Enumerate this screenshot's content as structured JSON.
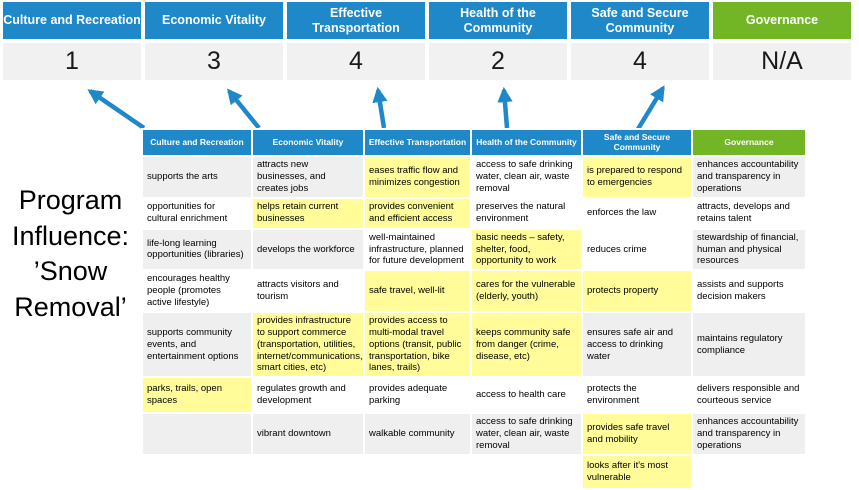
{
  "program_title": "Program Influence: ’Snow Removal’",
  "colors": {
    "priority_blue": "#1e88c9",
    "governance_green": "#72b626",
    "score_box_gray": "#f1f1f1",
    "cell_gray": "#efefef",
    "highlight_yellow": "#fffc99",
    "arrow_blue": "#1e88c9"
  },
  "priorities": [
    {
      "label": "Culture and Recreation",
      "score": "1",
      "theme": "blue"
    },
    {
      "label": "Economic Vitality",
      "score": "3",
      "theme": "blue"
    },
    {
      "label": "Effective Transportation",
      "score": "4",
      "theme": "blue"
    },
    {
      "label": "Health of the Community",
      "score": "2",
      "theme": "blue"
    },
    {
      "label": "Safe and Secure Community",
      "score": "4",
      "theme": "blue"
    },
    {
      "label": "Governance",
      "score": "N/A",
      "theme": "green"
    }
  ],
  "matrix": {
    "columns": [
      {
        "label": "Culture and Recreation",
        "theme": "blue"
      },
      {
        "label": "Economic Vitality",
        "theme": "blue"
      },
      {
        "label": "Effective Transportation",
        "theme": "blue"
      },
      {
        "label": "Health of the Community",
        "theme": "blue"
      },
      {
        "label": "Safe and Secure Community",
        "theme": "blue",
        "wrap": true
      },
      {
        "label": "Governance",
        "theme": "green"
      }
    ],
    "rows": [
      [
        {
          "text": "supports the arts",
          "bg": "gray"
        },
        {
          "text": "attracts new businesses, and creates jobs",
          "bg": "gray"
        },
        {
          "text": "eases traffic flow and minimizes congestion",
          "bg": "yellow"
        },
        {
          "text": "access to safe drinking water, clean air, waste removal",
          "bg": "white"
        },
        {
          "text": "is prepared to respond to emergencies",
          "bg": "yellow"
        },
        {
          "text": "enhances accountability and transparency in operations",
          "bg": "gray"
        }
      ],
      [
        {
          "text": "opportunities for cultural enrichment",
          "bg": "white"
        },
        {
          "text": "helps retain current businesses",
          "bg": "yellow"
        },
        {
          "text": "provides convenient and efficient access",
          "bg": "yellow"
        },
        {
          "text": "preserves the natural environment",
          "bg": "white"
        },
        {
          "text": "enforces the law",
          "bg": "white"
        },
        {
          "text": "attracts, develops and retains talent",
          "bg": "white"
        }
      ],
      [
        {
          "text": "life-long learning opportunities (libraries)",
          "bg": "gray"
        },
        {
          "text": "develops the workforce",
          "bg": "gray"
        },
        {
          "text": "well-maintained infrastructure, planned for future development",
          "bg": "white"
        },
        {
          "text": "basic needs – safety, shelter, food, opportunity to work",
          "bg": "yellow"
        },
        {
          "text": "reduces crime",
          "bg": "white"
        },
        {
          "text": "stewardship of financial, human and physical resources",
          "bg": "gray"
        }
      ],
      [
        {
          "text": "encourages healthy people (promotes active lifestyle)",
          "bg": "white"
        },
        {
          "text": "attracts visitors and tourism",
          "bg": "white"
        },
        {
          "text": "safe travel, well-lit",
          "bg": "yellow"
        },
        {
          "text": "cares for the vulnerable (elderly, youth)",
          "bg": "yellow"
        },
        {
          "text": "protects property",
          "bg": "yellow"
        },
        {
          "text": "assists and supports decision makers",
          "bg": "white"
        }
      ],
      [
        {
          "text": "supports community events, and entertainment options",
          "bg": "gray"
        },
        {
          "text": "provides infrastructure to support commerce (transportation, utilities, internet/communications, smart cities, etc)",
          "bg": "yellow"
        },
        {
          "text": "provides access to multi-modal travel options (transit, public transportation, bike lanes, trails)",
          "bg": "yellow"
        },
        {
          "text": "keeps community safe from danger (crime, disease, etc)",
          "bg": "yellow"
        },
        {
          "text": "ensures safe air and access to drinking water",
          "bg": "gray"
        },
        {
          "text": "maintains regulatory compliance",
          "bg": "gray"
        }
      ],
      [
        {
          "text": "parks, trails, open spaces",
          "bg": "yellow"
        },
        {
          "text": "regulates growth and development",
          "bg": "white"
        },
        {
          "text": "provides adequate parking",
          "bg": "white"
        },
        {
          "text": "access to health care",
          "bg": "white"
        },
        {
          "text": "protects the environment",
          "bg": "white"
        },
        {
          "text": "delivers responsible and courteous service",
          "bg": "white"
        }
      ],
      [
        {
          "text": "",
          "bg": "gray"
        },
        {
          "text": "vibrant downtown",
          "bg": "gray"
        },
        {
          "text": "walkable community",
          "bg": "gray"
        },
        {
          "text": "access to safe drinking water, clean air, waste removal",
          "bg": "gray"
        },
        {
          "text": "provides safe travel and mobility",
          "bg": "yellow"
        },
        {
          "text": "enhances accountability and transparency in operations",
          "bg": "gray"
        }
      ],
      [
        {
          "text": "",
          "bg": "white"
        },
        {
          "text": "",
          "bg": "white"
        },
        {
          "text": "",
          "bg": "white"
        },
        {
          "text": "",
          "bg": "white"
        },
        {
          "text": "looks after it's most vulnerable",
          "bg": "yellow"
        },
        {
          "text": "",
          "bg": "white"
        }
      ]
    ]
  }
}
